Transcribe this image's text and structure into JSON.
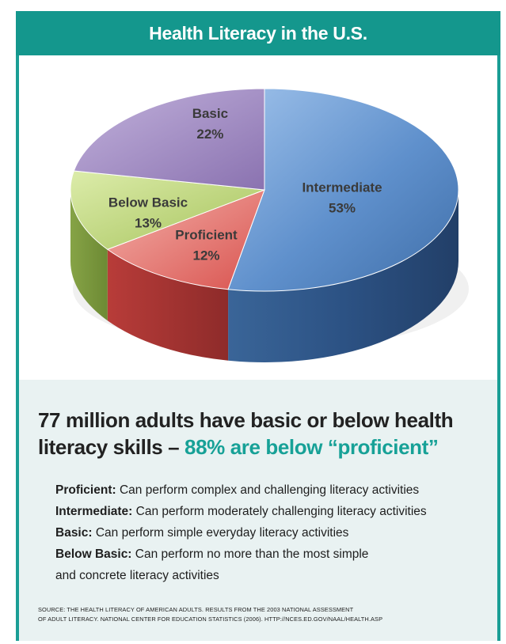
{
  "header": {
    "title": "Health Literacy in the U.S."
  },
  "chart_data": {
    "type": "pie",
    "title": "Health Literacy in the U.S.",
    "three_d": true,
    "slices": [
      {
        "label": "Intermediate",
        "value": 53,
        "value_label": "53%",
        "color": "#5a8ac4"
      },
      {
        "label": "Proficient",
        "value": 12,
        "value_label": "12%",
        "color": "#e0726d"
      },
      {
        "label": "Below Basic",
        "value": 13,
        "value_label": "13%",
        "color": "#b2cc6f"
      },
      {
        "label": "Basic",
        "value": 22,
        "value_label": "22%",
        "color": "#8f78b4"
      }
    ]
  },
  "summary": {
    "headline_part1": "77 million adults have basic or below health literacy skills – ",
    "headline_accent": "88% are below “proficient”",
    "accent_color": "#17a197",
    "definitions": [
      {
        "term": "Proficient:",
        "text": " Can perform complex and challenging literacy activities"
      },
      {
        "term": "Intermediate:",
        "text": " Can perform moderately challenging literacy activities"
      },
      {
        "term": "Basic:",
        "text": " Can perform simple everyday literacy activities"
      },
      {
        "term": "Below Basic:",
        "text": " Can perform no more than the most simple"
      }
    ],
    "definition_continuation": "and concrete literacy activities",
    "source_line1": "SOURCE: THE HEALTH LITERACY OF AMERICAN ADULTS.  RESULTS FROM THE 2003 NATIONAL ASSESSMENT",
    "source_line2": "OF ADULT LITERACY. NATIONAL CENTER FOR  EDUCATION STATISTICS (2006). HTTP://NCES.ED.GOV/NAAL/HEALTH.ASP"
  }
}
